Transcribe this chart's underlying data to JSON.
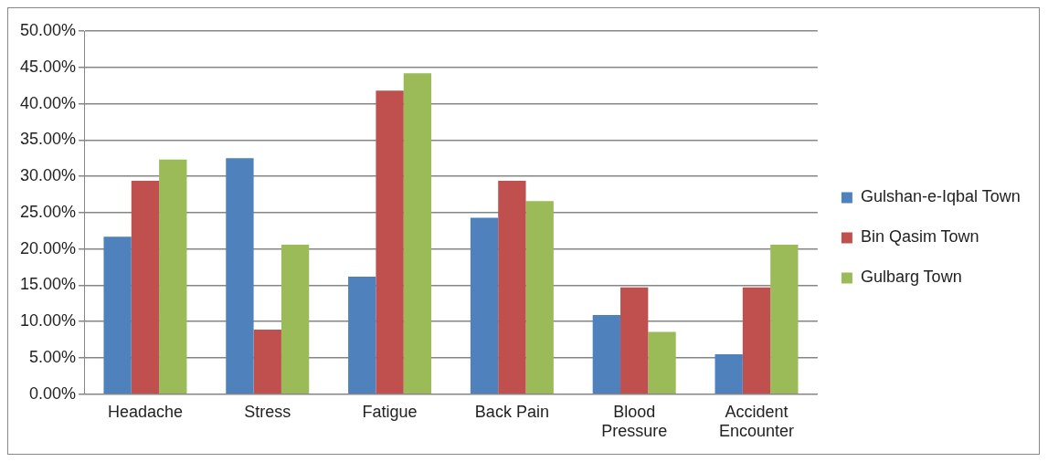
{
  "chart_data": {
    "type": "bar",
    "categories": [
      "Headache",
      "Stress",
      "Fatigue",
      "Back Pain",
      "Blood Pressure",
      "Accident Encounter"
    ],
    "series": [
      {
        "name": "Gulshan-e-Iqbal Town",
        "color": "#4f81bd",
        "values": [
          21.7,
          32.5,
          16.2,
          24.3,
          10.9,
          5.5
        ]
      },
      {
        "name": "Bin Qasim Town",
        "color": "#c0504d",
        "values": [
          29.4,
          8.9,
          41.8,
          29.4,
          14.7,
          14.7
        ]
      },
      {
        "name": "Gulbarg Town",
        "color": "#9bbb59",
        "values": [
          32.3,
          20.6,
          44.2,
          26.6,
          8.6,
          20.6
        ]
      }
    ],
    "ylim": [
      0,
      50
    ],
    "yticks": [
      {
        "value": 0,
        "label": "0.00%"
      },
      {
        "value": 5,
        "label": "5.00%"
      },
      {
        "value": 10,
        "label": "10.00%"
      },
      {
        "value": 15,
        "label": "15.00%"
      },
      {
        "value": 20,
        "label": "20.00%"
      },
      {
        "value": 25,
        "label": "25.00%"
      },
      {
        "value": 30,
        "label": "30.00%"
      },
      {
        "value": 35,
        "label": "35.00%"
      },
      {
        "value": 40,
        "label": "40.00%"
      },
      {
        "value": 45,
        "label": "45.00%"
      },
      {
        "value": 50,
        "label": "50.00%"
      }
    ],
    "grid": "y",
    "legend": "right"
  }
}
